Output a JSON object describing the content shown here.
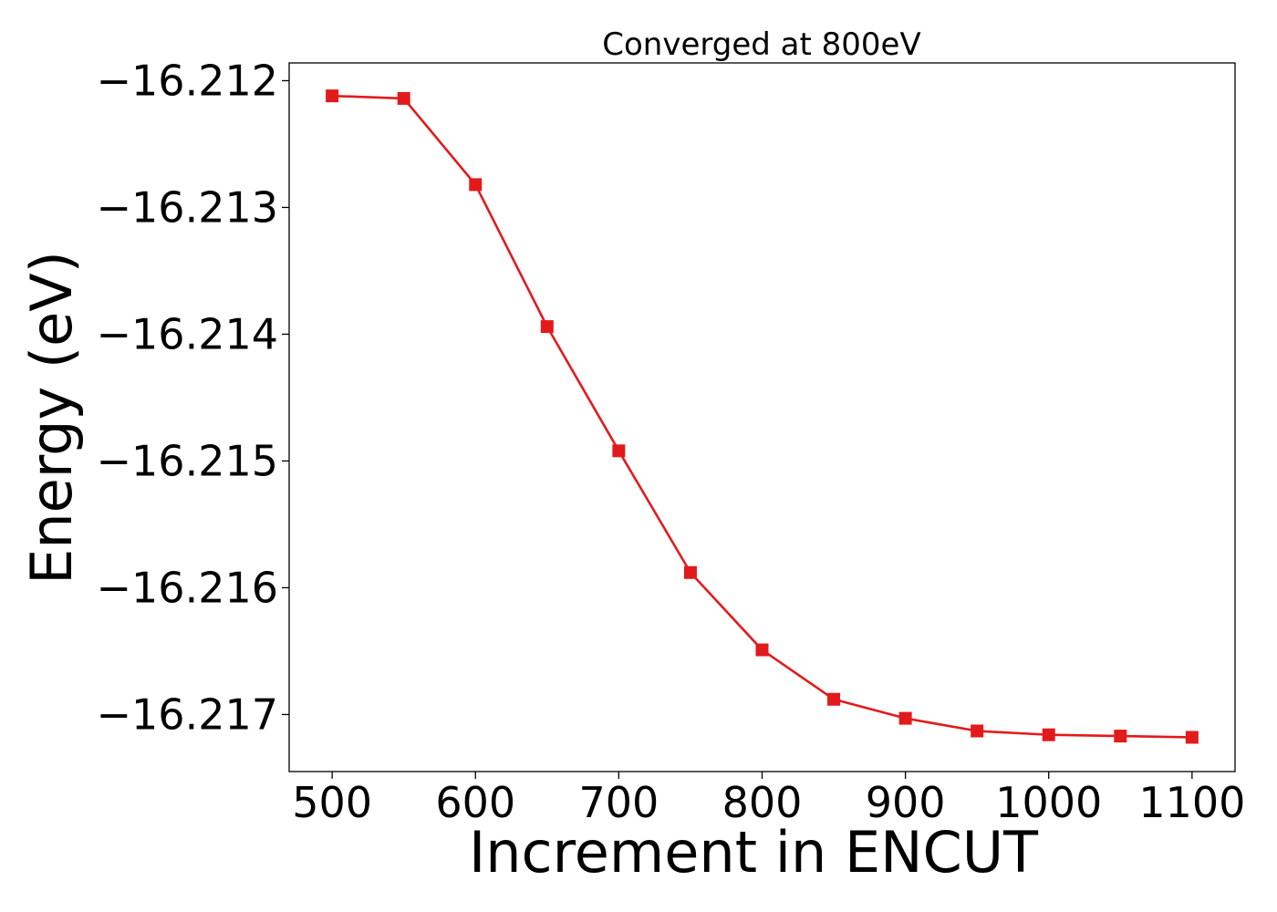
{
  "chart_data": {
    "type": "line",
    "title": "Converged at 800eV",
    "xlabel": "Increment in ENCUT",
    "ylabel": "Energy (eV)",
    "xlim": [
      470,
      1130
    ],
    "ylim": [
      -16.21745,
      -16.21186
    ],
    "x_ticks": [
      500,
      600,
      700,
      800,
      900,
      1000,
      1100
    ],
    "x_tick_labels": [
      "500",
      "600",
      "700",
      "800",
      "900",
      "1000",
      "1100"
    ],
    "y_ticks": [
      -16.212,
      -16.213,
      -16.214,
      -16.215,
      -16.216,
      -16.217
    ],
    "y_tick_labels": [
      "−16.212",
      "−16.213",
      "−16.214",
      "−16.215",
      "−16.216",
      "−16.217"
    ],
    "grid": false,
    "series": [
      {
        "color": "#e31a1c",
        "marker": "square",
        "x": [
          500,
          550,
          600,
          650,
          700,
          750,
          800,
          850,
          900,
          950,
          1000,
          1050,
          1100
        ],
        "y": [
          -16.21212,
          -16.21214,
          -16.21282,
          -16.21394,
          -16.21492,
          -16.21588,
          -16.21649,
          -16.21688,
          -16.21703,
          -16.21713,
          -16.21716,
          -16.21717,
          -16.21718
        ]
      }
    ]
  }
}
